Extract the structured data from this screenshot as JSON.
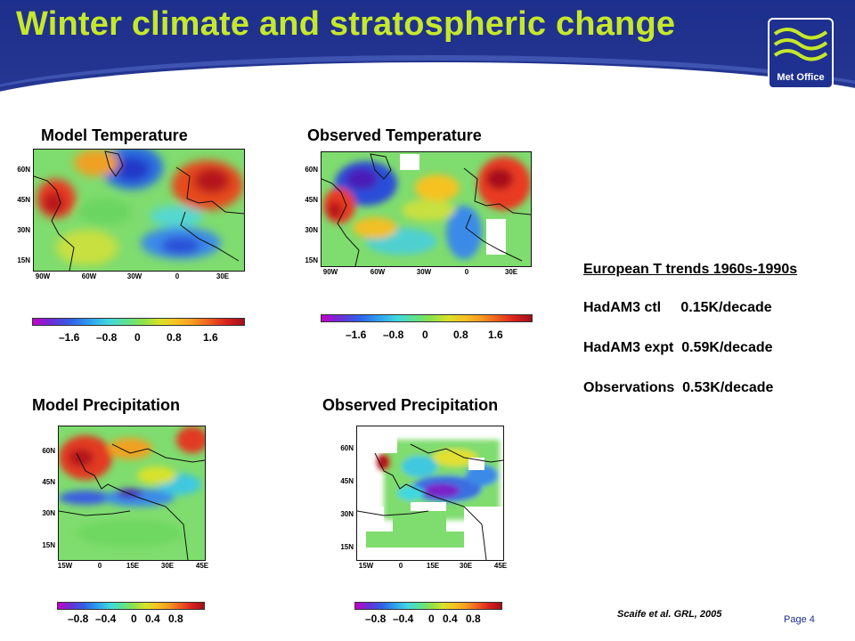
{
  "slide": {
    "title": "Winter climate and stratospheric change",
    "logo_text": "Met Office",
    "citation": "Scaife et al. GRL, 2005",
    "page_label": "Page 4"
  },
  "panels": {
    "model_temperature": {
      "title": "Model Temperature",
      "lat_labels": [
        "60N",
        "45N",
        "30N",
        "15N"
      ],
      "lon_labels": [
        "90W",
        "60W",
        "30W",
        "0",
        "30E"
      ],
      "colorbar_ticks": [
        "–1.6",
        "–0.8",
        "0",
        "0.8",
        "1.6"
      ]
    },
    "observed_temperature": {
      "title": "Observed Temperature",
      "lat_labels": [
        "60N",
        "45N",
        "30N",
        "15N"
      ],
      "lon_labels": [
        "90W",
        "60W",
        "30W",
        "0",
        "30E"
      ],
      "colorbar_ticks": [
        "–1.6",
        "–0.8",
        "0",
        "0.8",
        "1.6"
      ]
    },
    "model_precipitation": {
      "title": "Model Precipitation",
      "lat_labels": [
        "60N",
        "45N",
        "30N",
        "15N"
      ],
      "lon_labels": [
        "15W",
        "0",
        "15E",
        "30E",
        "45E"
      ],
      "colorbar_ticks": [
        "–0.8",
        "–0.4",
        "0",
        "0.4",
        "0.8"
      ]
    },
    "observed_precipitation": {
      "title": "Observed Precipitation",
      "lat_labels": [
        "60N",
        "45N",
        "30N",
        "15N"
      ],
      "lon_labels": [
        "15W",
        "0",
        "15E",
        "30E",
        "45E"
      ],
      "colorbar_ticks": [
        "–0.8",
        "–0.4",
        "0",
        "0.4",
        "0.8"
      ]
    }
  },
  "trends": {
    "heading": "European T trends 1960s-1990s",
    "rows": [
      "HadAM3 ctl     0.15K/decade",
      "HadAM3 expt  0.59K/decade",
      "Observations  0.53K/decade"
    ]
  },
  "colors": {
    "header_bg": "#22348f",
    "title_text": "#c6e82a",
    "page_label": "#1d2f8c"
  }
}
